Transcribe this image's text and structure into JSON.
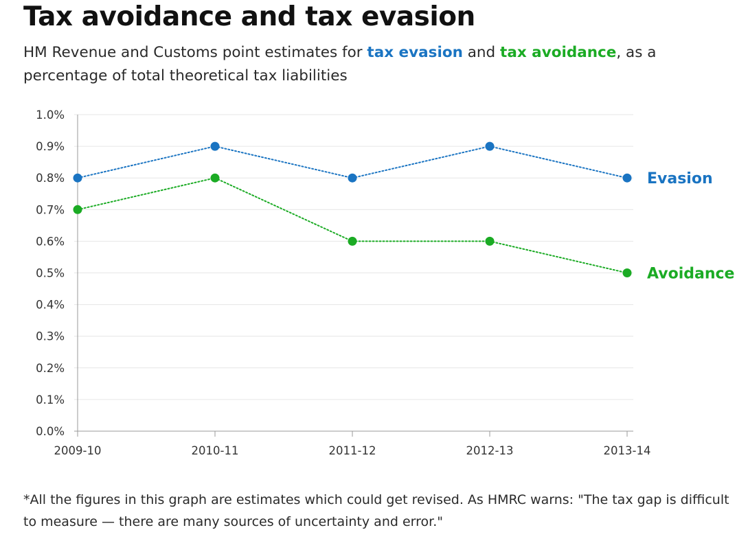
{
  "title": "Tax avoidance and tax evasion",
  "subtitle": {
    "lead": "HM Revenue and Customs point estimates for ",
    "evasion_term": "tax evasion",
    "conjunction": " and ",
    "avoidance_term": "tax avoidance",
    "tail": ", as a percentage of total theoretical tax liabilities"
  },
  "footnote": "*All the figures in this graph are estimates which could get revised. As HMRC warns: \"The tax gap is difficult to measure — there are many sources of uncertainty and error.\"",
  "colors": {
    "evasion": "#1a74c2",
    "avoidance": "#1bab24",
    "grid": "#e6e6e6",
    "axis": "#999999",
    "tick_text": "#333333"
  },
  "chart_data": {
    "type": "line",
    "title": "Tax avoidance and tax evasion",
    "xlabel": "",
    "ylabel": "",
    "categories": [
      "2009-10",
      "2010-11",
      "2011-12",
      "2012-13",
      "2013-14"
    ],
    "y_ticks": [
      "0.0%",
      "0.1%",
      "0.2%",
      "0.3%",
      "0.4%",
      "0.5%",
      "0.6%",
      "0.7%",
      "0.8%",
      "0.9%",
      "1.0%"
    ],
    "ylim": [
      0,
      1.0
    ],
    "y_unit": "%",
    "grid": true,
    "legend": "direct labels at line ends (right)",
    "line_style": "dotted with circular markers",
    "series": [
      {
        "name": "Evasion",
        "color": "#1a74c2",
        "values": [
          0.8,
          0.9,
          0.8,
          0.9,
          0.8
        ]
      },
      {
        "name": "Avoidance",
        "color": "#1bab24",
        "values": [
          0.7,
          0.8,
          0.6,
          0.6,
          0.5
        ]
      }
    ]
  }
}
